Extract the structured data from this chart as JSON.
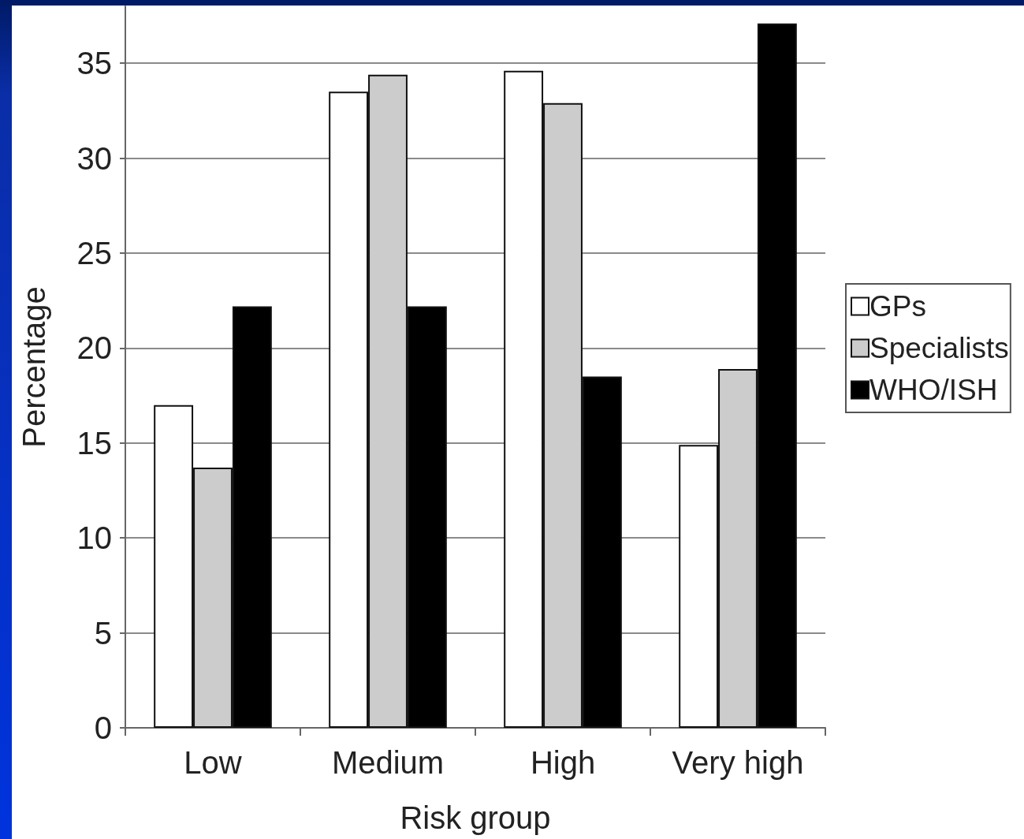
{
  "chart_data": {
    "type": "bar",
    "xlabel": "Risk group",
    "ylabel": "Percentage",
    "categories": [
      "Low",
      "Medium",
      "High",
      "Very high"
    ],
    "series": [
      {
        "name": "GPs",
        "color": "#ffffff",
        "values": [
          17.0,
          33.5,
          34.6,
          14.9
        ]
      },
      {
        "name": "Specialists",
        "color": "#cccccc",
        "values": [
          13.7,
          34.4,
          32.9,
          18.9
        ]
      },
      {
        "name": "WHO/ISH",
        "color": "#000000",
        "values": [
          22.2,
          22.2,
          18.5,
          37.1
        ]
      }
    ],
    "ylim": [
      0,
      38
    ],
    "yticks": [
      0,
      5,
      10,
      15,
      20,
      25,
      30,
      35
    ],
    "grid": "y",
    "legend": "right"
  }
}
